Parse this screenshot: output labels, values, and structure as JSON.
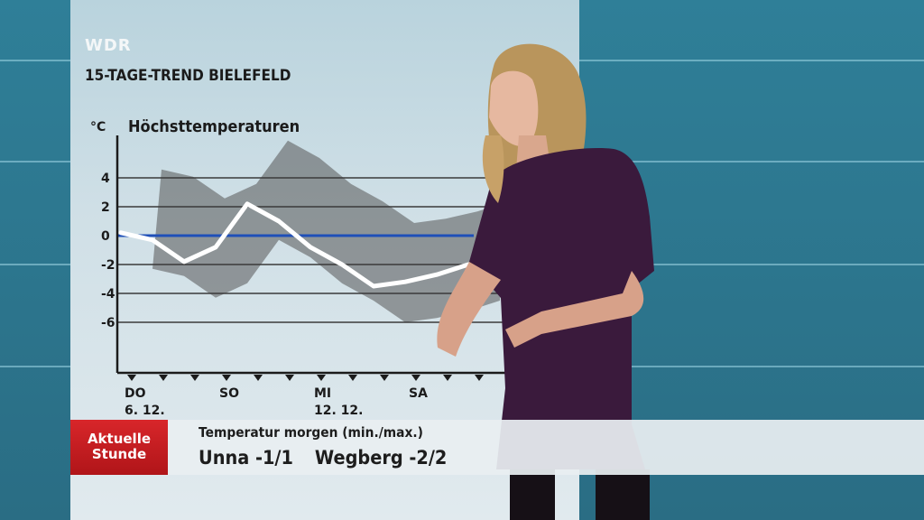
{
  "broadcaster": {
    "logo_text": "WDR"
  },
  "forecast": {
    "title": "15-TAGE-TREND BIELEFELD",
    "unit": "°C",
    "chart_title": "Höchsttemperaturen"
  },
  "chart_data": {
    "type": "line",
    "title": "Höchsttemperaturen",
    "ylabel": "°C",
    "yticks": [
      "4",
      "2",
      "0",
      "-2",
      "-4",
      "-6"
    ],
    "ytick_values": [
      4,
      2,
      0,
      -2,
      -4,
      -6
    ],
    "ylim": [
      -10,
      5
    ],
    "x_labels": [
      {
        "day": "DO",
        "date": "6. 12.",
        "index": 0
      },
      {
        "day": "SO",
        "date": "",
        "index": 3
      },
      {
        "day": "MI",
        "date": "12. 12.",
        "index": 6
      },
      {
        "day": "SA",
        "date": "",
        "index": 9
      }
    ],
    "x_count": 12,
    "grid": true,
    "reference_line_value": 0,
    "series": [
      {
        "values": [
          0.2,
          -0.3,
          -1.8,
          -0.8,
          2.2,
          1.0,
          -0.8,
          -2.0,
          -3.5,
          -3.2,
          -2.7,
          -2.0
        ],
        "color": "#ffffff"
      }
    ],
    "colors": {
      "reference_line": "#1f4fb8",
      "grid": "#3a3a3a",
      "axis": "#1b1b1b",
      "shadow": "#555555"
    }
  },
  "ticker": {
    "program_logo_line1": "Aktuelle",
    "program_logo_line2": "Stunde",
    "label": "Temperatur morgen (min./max.)",
    "city1": "Unna -1/1",
    "city2": "Wegberg -2/2",
    "logo_color": "#c91d22"
  }
}
